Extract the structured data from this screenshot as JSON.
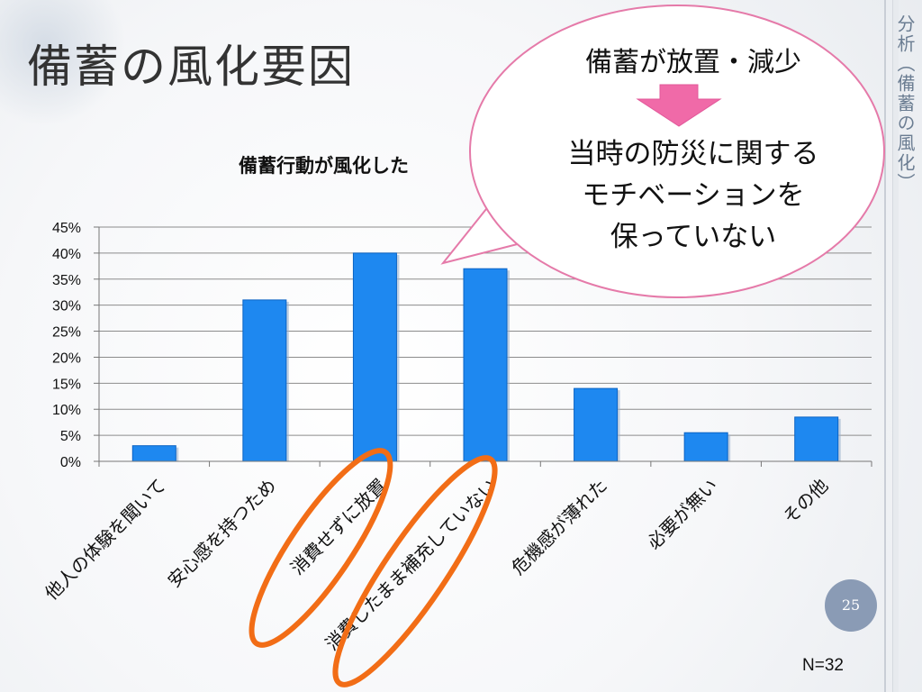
{
  "slide": {
    "title": "備蓄の風化要因",
    "side_title": "分析（備蓄の風化）",
    "page_number": "25",
    "sample_size": "N=32"
  },
  "callout": {
    "line1": "備蓄が放置・減少",
    "line2": "当時の防災に関する",
    "line3": "モチベーションを",
    "line4": "保っていない",
    "fill_color": "#ffffff",
    "border_color": "#e57aa9",
    "arrow_color": "#f06aa8"
  },
  "highlight_color": "#f26d16",
  "chart_data": {
    "type": "bar",
    "title": "備蓄行動が風化した",
    "categories": [
      "他人の体験を聞いて",
      "安心感を持つため",
      "消費せずに放置",
      "消費したまま補充していない",
      "危機感が薄れた",
      "必要が無い",
      "その他"
    ],
    "values": [
      0.03,
      0.31,
      0.4,
      0.37,
      0.14,
      0.055,
      0.085
    ],
    "ylim": [
      0,
      0.45
    ],
    "yticks": [
      "0%",
      "5%",
      "10%",
      "15%",
      "20%",
      "25%",
      "30%",
      "35%",
      "40%",
      "45%"
    ],
    "grid": true,
    "bar_color": "#1e88f0",
    "highlighted_categories": [
      2,
      3
    ]
  }
}
